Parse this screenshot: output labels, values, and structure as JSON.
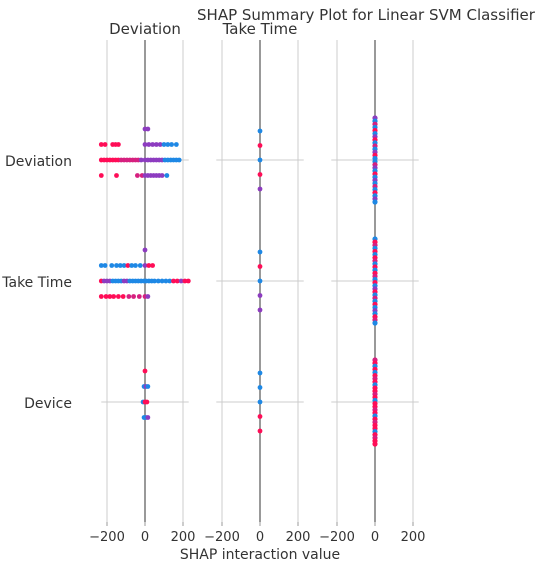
{
  "chart_data": {
    "type": "scatter",
    "title": "SHAP Summary Plot for Linear SVM Classifier",
    "xlabel": "SHAP interaction value",
    "features": [
      "Deviation",
      "Take Time",
      "Device"
    ],
    "panel_titles": [
      "Deviation",
      "Take Time",
      ""
    ],
    "xlim": [
      -230,
      230
    ],
    "xticks": [
      -200,
      0,
      200
    ],
    "xtick_labels": [
      "−200",
      "0",
      "200"
    ],
    "grid": true,
    "legend": "none",
    "colors": {
      "pink": "#ff0d57",
      "magenta": "#d6207f",
      "purple": "#8d3cc0",
      "blue": "#1e88e5",
      "axis": "#999999",
      "grid": "#cccccc"
    },
    "panels": [
      {
        "panel_title": "Deviation",
        "rows": [
          {
            "feature": "Deviation",
            "points": [
              {
                "x": -230,
                "dy": -1,
                "c": "pink"
              },
              {
                "x": -210,
                "dy": -1,
                "c": "pink"
              },
              {
                "x": -170,
                "dy": -1,
                "c": "pink"
              },
              {
                "x": -155,
                "dy": -1,
                "c": "pink"
              },
              {
                "x": -140,
                "dy": -1,
                "c": "pink"
              },
              {
                "x": 0,
                "dy": -2,
                "c": "purple"
              },
              {
                "x": 15,
                "dy": -2,
                "c": "purple"
              },
              {
                "x": 0,
                "dy": -1,
                "c": "purple"
              },
              {
                "x": 20,
                "dy": -1,
                "c": "purple"
              },
              {
                "x": 40,
                "dy": -1,
                "c": "purple"
              },
              {
                "x": 60,
                "dy": -1,
                "c": "purple"
              },
              {
                "x": 80,
                "dy": -1,
                "c": "purple"
              },
              {
                "x": 100,
                "dy": -1,
                "c": "blue"
              },
              {
                "x": 120,
                "dy": -1,
                "c": "blue"
              },
              {
                "x": 140,
                "dy": -1,
                "c": "blue"
              },
              {
                "x": 165,
                "dy": -1,
                "c": "blue"
              },
              {
                "x": -230,
                "dy": 0,
                "c": "pink"
              },
              {
                "x": -215,
                "dy": 0,
                "c": "pink"
              },
              {
                "x": -200,
                "dy": 0,
                "c": "pink"
              },
              {
                "x": -185,
                "dy": 0,
                "c": "pink"
              },
              {
                "x": -170,
                "dy": 0,
                "c": "pink"
              },
              {
                "x": -155,
                "dy": 0,
                "c": "pink"
              },
              {
                "x": -140,
                "dy": 0,
                "c": "pink"
              },
              {
                "x": -125,
                "dy": 0,
                "c": "magenta"
              },
              {
                "x": -110,
                "dy": 0,
                "c": "magenta"
              },
              {
                "x": -95,
                "dy": 0,
                "c": "magenta"
              },
              {
                "x": -80,
                "dy": 0,
                "c": "magenta"
              },
              {
                "x": -65,
                "dy": 0,
                "c": "magenta"
              },
              {
                "x": -50,
                "dy": 0,
                "c": "magenta"
              },
              {
                "x": -35,
                "dy": 0,
                "c": "magenta"
              },
              {
                "x": -20,
                "dy": 0,
                "c": "purple"
              },
              {
                "x": 0,
                "dy": 0,
                "c": "purple"
              },
              {
                "x": 15,
                "dy": 0,
                "c": "purple"
              },
              {
                "x": 30,
                "dy": 0,
                "c": "purple"
              },
              {
                "x": 45,
                "dy": 0,
                "c": "purple"
              },
              {
                "x": 60,
                "dy": 0,
                "c": "purple"
              },
              {
                "x": 75,
                "dy": 0,
                "c": "purple"
              },
              {
                "x": 90,
                "dy": 0,
                "c": "purple"
              },
              {
                "x": 105,
                "dy": 0,
                "c": "blue"
              },
              {
                "x": 120,
                "dy": 0,
                "c": "blue"
              },
              {
                "x": 135,
                "dy": 0,
                "c": "blue"
              },
              {
                "x": 150,
                "dy": 0,
                "c": "blue"
              },
              {
                "x": 165,
                "dy": 0,
                "c": "blue"
              },
              {
                "x": 180,
                "dy": 0,
                "c": "blue"
              },
              {
                "x": -230,
                "dy": 1,
                "c": "pink"
              },
              {
                "x": -150,
                "dy": 1,
                "c": "pink"
              },
              {
                "x": -40,
                "dy": 1,
                "c": "magenta"
              },
              {
                "x": -15,
                "dy": 1,
                "c": "magenta"
              },
              {
                "x": 0,
                "dy": 1,
                "c": "purple"
              },
              {
                "x": 15,
                "dy": 1,
                "c": "purple"
              },
              {
                "x": 30,
                "dy": 1,
                "c": "purple"
              },
              {
                "x": 45,
                "dy": 1,
                "c": "purple"
              },
              {
                "x": 60,
                "dy": 1,
                "c": "purple"
              },
              {
                "x": 75,
                "dy": 1,
                "c": "purple"
              },
              {
                "x": 90,
                "dy": 1,
                "c": "purple"
              },
              {
                "x": 115,
                "dy": 1,
                "c": "blue"
              }
            ]
          },
          {
            "feature": "Take Time",
            "points": [
              {
                "x": 0,
                "dy": -2,
                "c": "purple"
              },
              {
                "x": -230,
                "dy": -1,
                "c": "blue"
              },
              {
                "x": -210,
                "dy": -1,
                "c": "blue"
              },
              {
                "x": -175,
                "dy": -1,
                "c": "blue"
              },
              {
                "x": -150,
                "dy": -1,
                "c": "blue"
              },
              {
                "x": -130,
                "dy": -1,
                "c": "blue"
              },
              {
                "x": -110,
                "dy": -1,
                "c": "blue"
              },
              {
                "x": -90,
                "dy": -1,
                "c": "pink"
              },
              {
                "x": -70,
                "dy": -1,
                "c": "blue"
              },
              {
                "x": -50,
                "dy": -1,
                "c": "blue"
              },
              {
                "x": -25,
                "dy": -1,
                "c": "blue"
              },
              {
                "x": 0,
                "dy": -1,
                "c": "purple"
              },
              {
                "x": 20,
                "dy": -1,
                "c": "pink"
              },
              {
                "x": 40,
                "dy": -1,
                "c": "pink"
              },
              {
                "x": -230,
                "dy": 0,
                "c": "pink"
              },
              {
                "x": -215,
                "dy": 0,
                "c": "purple"
              },
              {
                "x": -200,
                "dy": 0,
                "c": "purple"
              },
              {
                "x": -185,
                "dy": 0,
                "c": "purple"
              },
              {
                "x": -170,
                "dy": 0,
                "c": "blue"
              },
              {
                "x": -155,
                "dy": 0,
                "c": "blue"
              },
              {
                "x": -140,
                "dy": 0,
                "c": "blue"
              },
              {
                "x": -125,
                "dy": 0,
                "c": "blue"
              },
              {
                "x": -110,
                "dy": 0,
                "c": "purple"
              },
              {
                "x": -95,
                "dy": 0,
                "c": "purple"
              },
              {
                "x": -80,
                "dy": 0,
                "c": "blue"
              },
              {
                "x": -65,
                "dy": 0,
                "c": "blue"
              },
              {
                "x": -50,
                "dy": 0,
                "c": "blue"
              },
              {
                "x": -35,
                "dy": 0,
                "c": "blue"
              },
              {
                "x": -20,
                "dy": 0,
                "c": "blue"
              },
              {
                "x": -5,
                "dy": 0,
                "c": "blue"
              },
              {
                "x": 5,
                "dy": 0,
                "c": "blue"
              },
              {
                "x": 20,
                "dy": 0,
                "c": "blue"
              },
              {
                "x": 35,
                "dy": 0,
                "c": "blue"
              },
              {
                "x": 50,
                "dy": 0,
                "c": "blue"
              },
              {
                "x": 70,
                "dy": 0,
                "c": "blue"
              },
              {
                "x": 90,
                "dy": 0,
                "c": "blue"
              },
              {
                "x": 110,
                "dy": 0,
                "c": "blue"
              },
              {
                "x": 130,
                "dy": 0,
                "c": "blue"
              },
              {
                "x": 150,
                "dy": 0,
                "c": "pink"
              },
              {
                "x": 170,
                "dy": 0,
                "c": "pink"
              },
              {
                "x": 190,
                "dy": 0,
                "c": "purple"
              },
              {
                "x": 210,
                "dy": 0,
                "c": "pink"
              },
              {
                "x": 228,
                "dy": 0,
                "c": "pink"
              },
              {
                "x": -230,
                "dy": 1,
                "c": "pink"
              },
              {
                "x": -205,
                "dy": 1,
                "c": "pink"
              },
              {
                "x": -185,
                "dy": 1,
                "c": "pink"
              },
              {
                "x": -165,
                "dy": 1,
                "c": "pink"
              },
              {
                "x": -140,
                "dy": 1,
                "c": "pink"
              },
              {
                "x": -115,
                "dy": 1,
                "c": "pink"
              },
              {
                "x": -85,
                "dy": 1,
                "c": "magenta"
              },
              {
                "x": -60,
                "dy": 1,
                "c": "magenta"
              },
              {
                "x": -30,
                "dy": 1,
                "c": "magenta"
              },
              {
                "x": 0,
                "dy": 1,
                "c": "magenta"
              },
              {
                "x": 15,
                "dy": 1,
                "c": "purple"
              }
            ]
          },
          {
            "feature": "Device",
            "points": [
              {
                "x": 0,
                "dy": -2,
                "c": "pink"
              },
              {
                "x": -5,
                "dy": -1,
                "c": "blue"
              },
              {
                "x": 5,
                "dy": -1,
                "c": "purple"
              },
              {
                "x": 15,
                "dy": -1,
                "c": "blue"
              },
              {
                "x": -10,
                "dy": 0,
                "c": "blue"
              },
              {
                "x": 0,
                "dy": 0,
                "c": "pink"
              },
              {
                "x": 10,
                "dy": 0,
                "c": "pink"
              },
              {
                "x": -5,
                "dy": 1,
                "c": "blue"
              },
              {
                "x": 5,
                "dy": 1,
                "c": "blue"
              },
              {
                "x": 15,
                "dy": 1,
                "c": "purple"
              }
            ]
          }
        ]
      },
      {
        "panel_title": "Take Time",
        "rows": [
          {
            "feature": "Deviation",
            "points": [
              {
                "x": 0,
                "dy": -2,
                "c": "blue"
              },
              {
                "x": 0,
                "dy": -1,
                "c": "pink"
              },
              {
                "x": 0,
                "dy": 0,
                "c": "blue"
              },
              {
                "x": 0,
                "dy": 1,
                "c": "pink"
              },
              {
                "x": 0,
                "dy": 2,
                "c": "purple"
              }
            ]
          },
          {
            "feature": "Take Time",
            "points": [
              {
                "x": 0,
                "dy": -2,
                "c": "blue"
              },
              {
                "x": 0,
                "dy": -1,
                "c": "pink"
              },
              {
                "x": 0,
                "dy": 0,
                "c": "blue"
              },
              {
                "x": 0,
                "dy": 1,
                "c": "purple"
              },
              {
                "x": 0,
                "dy": 2,
                "c": "purple"
              }
            ]
          },
          {
            "feature": "Device",
            "points": [
              {
                "x": 0,
                "dy": -2,
                "c": "blue"
              },
              {
                "x": 0,
                "dy": -1,
                "c": "blue"
              },
              {
                "x": 0,
                "dy": 0,
                "c": "blue"
              },
              {
                "x": 0,
                "dy": 1,
                "c": "pink"
              },
              {
                "x": 0,
                "dy": 2,
                "c": "pink"
              }
            ]
          }
        ]
      },
      {
        "panel_title": "",
        "stack_rows": [
          {
            "feature": "Deviation",
            "colors": [
              "purple",
              "blue",
              "magenta",
              "blue",
              "pink",
              "blue",
              "purple",
              "pink",
              "blue",
              "magenta",
              "blue",
              "purple",
              "pink",
              "blue",
              "blue",
              "magenta",
              "purple",
              "blue",
              "pink",
              "blue",
              "purple",
              "blue",
              "magenta",
              "blue",
              "pink",
              "blue",
              "purple",
              "blue"
            ]
          },
          {
            "feature": "Take Time",
            "colors": [
              "blue",
              "pink",
              "magenta",
              "blue",
              "pink",
              "blue",
              "pink",
              "magenta",
              "blue",
              "pink",
              "blue",
              "pink",
              "magenta",
              "blue",
              "pink",
              "blue",
              "purple",
              "pink",
              "blue",
              "magenta",
              "blue",
              "pink",
              "blue",
              "purple",
              "blue",
              "pink",
              "magenta",
              "blue"
            ]
          },
          {
            "feature": "Device",
            "colors": [
              "magenta",
              "pink",
              "blue",
              "pink",
              "blue",
              "pink",
              "magenta",
              "pink",
              "blue",
              "pink",
              "pink",
              "magenta",
              "pink",
              "blue",
              "pink",
              "pink",
              "magenta",
              "pink",
              "blue",
              "pink",
              "magenta",
              "pink",
              "pink",
              "blue",
              "pink",
              "magenta",
              "pink",
              "pink"
            ]
          }
        ]
      }
    ]
  }
}
